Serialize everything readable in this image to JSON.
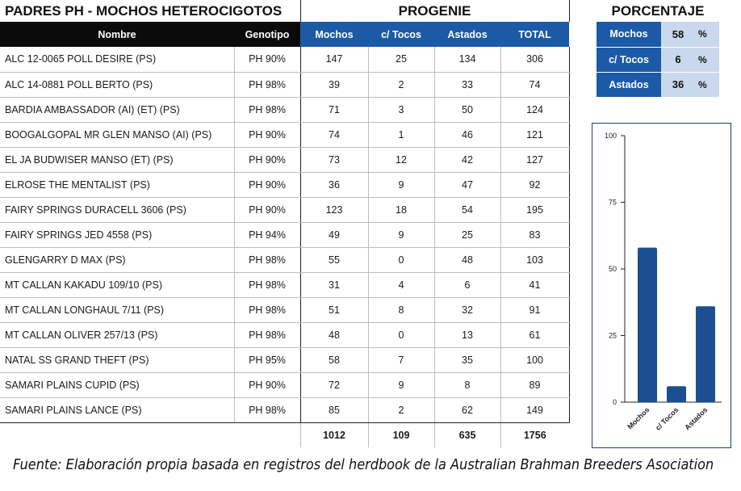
{
  "table": {
    "title": "PADRES PH - MOCHOS HETEROCIGOTOS",
    "progenie_title": "PROGENIE",
    "headers": {
      "nombre": "Nombre",
      "genotipo": "Genotipo",
      "mochos": "Mochos",
      "tocos": "c/ Tocos",
      "astados": "Astados",
      "total": "TOTAL"
    },
    "rows": [
      {
        "nombre": "ALC 12-0065 POLL DESIRE (PS)",
        "genotipo": "PH 90%",
        "mochos": "147",
        "tocos": "25",
        "astados": "134",
        "total": "306"
      },
      {
        "nombre": "ALC 14-0881 POLL BERTO (PS)",
        "genotipo": "PH 98%",
        "mochos": "39",
        "tocos": "2",
        "astados": "33",
        "total": "74"
      },
      {
        "nombre": "BARDIA AMBASSADOR (AI) (ET) (PS)",
        "genotipo": "PH 98%",
        "mochos": "71",
        "tocos": "3",
        "astados": "50",
        "total": "124"
      },
      {
        "nombre": "BOOGALGOPAL MR GLEN MANSO (AI) (PS)",
        "genotipo": "PH 90%",
        "mochos": "74",
        "tocos": "1",
        "astados": "46",
        "total": "121"
      },
      {
        "nombre": "EL JA BUDWISER MANSO (ET) (PS)",
        "genotipo": "PH 90%",
        "mochos": "73",
        "tocos": "12",
        "astados": "42",
        "total": "127"
      },
      {
        "nombre": "ELROSE THE MENTALIST (PS)",
        "genotipo": "PH 90%",
        "mochos": "36",
        "tocos": "9",
        "astados": "47",
        "total": "92"
      },
      {
        "nombre": "FAIRY SPRINGS DURACELL 3606 (PS)",
        "genotipo": "PH 90%",
        "mochos": "123",
        "tocos": "18",
        "astados": "54",
        "total": "195"
      },
      {
        "nombre": "FAIRY SPRINGS JED 4558 (PS)",
        "genotipo": "PH 94%",
        "mochos": "49",
        "tocos": "9",
        "astados": "25",
        "total": "83"
      },
      {
        "nombre": "GLENGARRY D MAX (PS)",
        "genotipo": "PH 98%",
        "mochos": "55",
        "tocos": "0",
        "astados": "48",
        "total": "103"
      },
      {
        "nombre": "MT CALLAN KAKADU 109/10 (PS)",
        "genotipo": "PH 98%",
        "mochos": "31",
        "tocos": "4",
        "astados": "6",
        "total": "41"
      },
      {
        "nombre": "MT CALLAN LONGHAUL 7/11 (PS)",
        "genotipo": "PH 98%",
        "mochos": "51",
        "tocos": "8",
        "astados": "32",
        "total": "91"
      },
      {
        "nombre": "MT CALLAN OLIVER 257/13 (PS)",
        "genotipo": "PH 98%",
        "mochos": "48",
        "tocos": "0",
        "astados": "13",
        "total": "61"
      },
      {
        "nombre": "NATAL SS GRAND THEFT (PS)",
        "genotipo": "PH 95%",
        "mochos": "58",
        "tocos": "7",
        "astados": "35",
        "total": "100"
      },
      {
        "nombre": "SAMARI PLAINS CUPID (PS)",
        "genotipo": "PH 90%",
        "mochos": "72",
        "tocos": "9",
        "astados": "8",
        "total": "89"
      },
      {
        "nombre": "SAMARI PLAINS LANCE (PS)",
        "genotipo": "PH 98%",
        "mochos": "85",
        "tocos": "2",
        "astados": "62",
        "total": "149"
      }
    ],
    "totals": {
      "mochos": "1012",
      "tocos": "109",
      "astados": "635",
      "total": "1756"
    }
  },
  "porcentaje": {
    "title": "PORCENTAJE",
    "rows": [
      {
        "label": "Mochos",
        "value": "58",
        "unit": "%"
      },
      {
        "label": "c/ Tocos",
        "value": "6",
        "unit": "%"
      },
      {
        "label": "Astados",
        "value": "36",
        "unit": "%"
      }
    ]
  },
  "chart_data": {
    "type": "bar",
    "title": "",
    "xlabel": "",
    "ylabel": "",
    "categories": [
      "Mochos",
      "c/ Tocos",
      "Astados"
    ],
    "values": [
      58,
      6,
      36
    ],
    "ylim": [
      0,
      100
    ],
    "yticks": [
      0,
      25,
      50,
      75,
      100
    ],
    "grid": false,
    "bar_color": "#1b4f91"
  },
  "source": "Fuente: Elaboración propia basada en registros del herdbook de la Australian Brahman Breeders Asociation"
}
